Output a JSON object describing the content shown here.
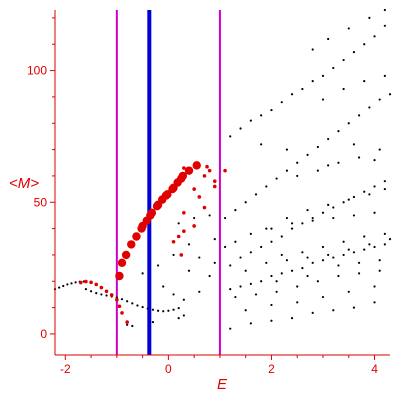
{
  "chart_data": {
    "type": "scatter",
    "title": "",
    "xlabel": "E",
    "ylabel": "<M>",
    "xlim": [
      -2.2,
      4.3
    ],
    "ylim": [
      -8,
      123
    ],
    "xticks": [
      -2,
      0,
      2,
      4
    ],
    "yticks": [
      0,
      50,
      100
    ],
    "xtick_labels": [
      "-2",
      "0",
      "2",
      "4"
    ],
    "ytick_labels": [
      "0",
      "50",
      "100"
    ],
    "grid": false,
    "legend": "none",
    "colors": {
      "axis": "#e00000",
      "background_points": "#000000",
      "highlight_points": "#e00000",
      "marker_line_outer": "#cc00cc",
      "marker_line_inner": "#0000dd"
    },
    "vertical_lines": [
      {
        "x": -1.0,
        "color": "#cc00cc"
      },
      {
        "x": 1.0,
        "color": "#cc00cc"
      },
      {
        "x": -0.37,
        "color": "#0000dd"
      }
    ],
    "series": [
      {
        "marker": "dot-black",
        "points": [
          [
            -2.2,
            17
          ],
          [
            -2.12,
            17.6
          ],
          [
            -2.04,
            18.2
          ],
          [
            -1.96,
            18.8
          ],
          [
            -1.88,
            19.2
          ],
          [
            -1.8,
            19.6
          ],
          [
            -1.72,
            19.8
          ],
          [
            -1.64,
            19.9
          ],
          [
            -1.6,
            17
          ],
          [
            -1.5,
            16.2
          ],
          [
            -1.4,
            15.5
          ],
          [
            -1.3,
            15
          ],
          [
            -1.2,
            14.6
          ],
          [
            -1.1,
            14.2
          ],
          [
            -1.0,
            13.8
          ],
          [
            -0.9,
            13.2
          ],
          [
            -0.8,
            12.4
          ],
          [
            -0.7,
            11.6
          ],
          [
            -0.6,
            10.8
          ],
          [
            -0.5,
            10.2
          ],
          [
            -0.4,
            9.6
          ],
          [
            -0.3,
            9.2
          ],
          [
            -0.2,
            8.8
          ],
          [
            -0.1,
            8.6
          ],
          [
            0.0,
            8.8
          ],
          [
            0.1,
            9.2
          ],
          [
            0.2,
            9.8
          ],
          [
            -0.8,
            3.5
          ],
          [
            -0.7,
            3.0
          ],
          [
            -0.3,
            4.5
          ],
          [
            0.2,
            6
          ],
          [
            0.3,
            7
          ],
          [
            -0.5,
            23
          ],
          [
            -0.2,
            26
          ],
          [
            0.1,
            30
          ],
          [
            0.4,
            34
          ],
          [
            -0.1,
            18
          ],
          [
            0.1,
            15
          ],
          [
            0.3,
            13
          ],
          [
            0.6,
            16
          ],
          [
            0.2,
            42
          ],
          [
            0.5,
            44
          ],
          [
            0.8,
            45
          ],
          [
            0.9,
            36
          ],
          [
            0.6,
            29
          ],
          [
            0.4,
            24
          ],
          [
            0.8,
            22
          ],
          [
            0.9,
            27
          ],
          [
            1.1,
            44
          ],
          [
            1.3,
            47
          ],
          [
            1.5,
            50
          ],
          [
            1.7,
            53
          ],
          [
            1.9,
            56
          ],
          [
            2.1,
            59
          ],
          [
            2.3,
            62
          ],
          [
            2.5,
            65
          ],
          [
            2.7,
            68
          ],
          [
            2.9,
            71
          ],
          [
            3.1,
            74
          ],
          [
            3.3,
            77
          ],
          [
            3.5,
            80
          ],
          [
            3.7,
            83
          ],
          [
            3.9,
            86
          ],
          [
            4.1,
            89
          ],
          [
            4.3,
            91
          ],
          [
            1.2,
            75
          ],
          [
            1.4,
            78
          ],
          [
            1.6,
            81
          ],
          [
            1.8,
            83
          ],
          [
            2.0,
            85
          ],
          [
            2.2,
            88
          ],
          [
            2.4,
            91
          ],
          [
            2.6,
            93
          ],
          [
            2.8,
            96
          ],
          [
            3.0,
            98
          ],
          [
            3.2,
            101
          ],
          [
            3.4,
            104
          ],
          [
            3.6,
            107
          ],
          [
            3.8,
            110
          ],
          [
            4.0,
            113
          ],
          [
            4.2,
            117
          ],
          [
            2.8,
            108
          ],
          [
            3.1,
            112
          ],
          [
            3.5,
            116
          ],
          [
            3.9,
            120
          ],
          [
            4.2,
            123
          ],
          [
            1.2,
            26
          ],
          [
            1.4,
            29
          ],
          [
            1.6,
            31
          ],
          [
            1.8,
            33
          ],
          [
            2.0,
            35
          ],
          [
            2.2,
            37
          ],
          [
            2.4,
            40
          ],
          [
            2.6,
            42
          ],
          [
            2.8,
            44
          ],
          [
            3.0,
            46
          ],
          [
            3.2,
            48
          ],
          [
            3.4,
            50
          ],
          [
            3.6,
            52
          ],
          [
            3.8,
            54
          ],
          [
            4.0,
            56
          ],
          [
            4.2,
            58
          ],
          [
            1.3,
            35
          ],
          [
            1.6,
            38
          ],
          [
            1.9,
            40
          ],
          [
            2.3,
            44
          ],
          [
            2.7,
            47
          ],
          [
            3.1,
            49
          ],
          [
            3.5,
            51
          ],
          [
            3.9,
            53
          ],
          [
            4.2,
            55
          ],
          [
            1.2,
            17
          ],
          [
            1.4,
            18
          ],
          [
            1.6,
            19
          ],
          [
            1.8,
            20
          ],
          [
            2.0,
            22
          ],
          [
            2.2,
            23
          ],
          [
            2.4,
            24
          ],
          [
            2.6,
            25
          ],
          [
            2.8,
            27
          ],
          [
            3.0,
            28
          ],
          [
            3.2,
            29
          ],
          [
            3.4,
            30
          ],
          [
            3.6,
            31
          ],
          [
            3.8,
            32
          ],
          [
            4.0,
            33
          ],
          [
            4.2,
            34
          ],
          [
            1.3,
            14
          ],
          [
            1.7,
            15
          ],
          [
            2.1,
            16
          ],
          [
            2.5,
            18
          ],
          [
            2.9,
            20
          ],
          [
            3.3,
            22
          ],
          [
            3.7,
            23
          ],
          [
            4.1,
            24
          ],
          [
            1.5,
            9
          ],
          [
            2.0,
            11
          ],
          [
            2.5,
            12
          ],
          [
            3.0,
            14
          ],
          [
            3.5,
            16
          ],
          [
            4.0,
            18
          ],
          [
            1.2,
            2
          ],
          [
            1.6,
            4
          ],
          [
            2.0,
            5
          ],
          [
            2.4,
            6
          ],
          [
            2.8,
            8
          ],
          [
            3.2,
            9
          ],
          [
            3.6,
            10
          ],
          [
            4.0,
            12
          ],
          [
            2.2,
            30
          ],
          [
            2.6,
            31
          ],
          [
            3.0,
            33
          ],
          [
            3.4,
            35
          ],
          [
            3.8,
            37
          ],
          [
            4.2,
            38
          ],
          [
            2.3,
            28
          ],
          [
            2.7,
            29
          ],
          [
            3.1,
            30
          ],
          [
            3.5,
            32
          ],
          [
            3.9,
            34
          ],
          [
            4.3,
            36
          ],
          [
            2.5,
            60
          ],
          [
            2.9,
            62
          ],
          [
            3.3,
            65
          ],
          [
            3.7,
            67
          ],
          [
            4.1,
            70
          ],
          [
            3.0,
            89
          ],
          [
            3.4,
            93
          ],
          [
            3.8,
            96
          ],
          [
            4.2,
            98
          ],
          [
            1.8,
            72
          ],
          [
            2.3,
            70
          ],
          [
            3.1,
            64
          ],
          [
            3.6,
            72
          ],
          [
            4.0,
            66
          ],
          [
            2.0,
            40
          ],
          [
            2.4,
            42
          ],
          [
            2.8,
            43
          ],
          [
            3.2,
            44
          ],
          [
            3.6,
            45
          ],
          [
            4.0,
            46
          ],
          [
            1.1,
            33
          ],
          [
            1.5,
            24
          ],
          [
            1.9,
            27
          ],
          [
            2.1,
            20
          ],
          [
            2.7,
            22
          ],
          [
            3.3,
            26
          ],
          [
            3.7,
            27
          ],
          [
            4.1,
            28
          ]
        ]
      },
      {
        "marker": "dot-red-small",
        "points": [
          [
            -1.7,
            19.5
          ],
          [
            -1.6,
            19.9
          ],
          [
            -1.5,
            19.6
          ],
          [
            -1.4,
            18.8
          ],
          [
            -1.3,
            17.6
          ],
          [
            -1.2,
            16.2
          ],
          [
            -1.1,
            14.8
          ],
          [
            -1.0,
            13.0
          ],
          [
            -0.95,
            10.5
          ],
          [
            -0.9,
            8.0
          ],
          [
            -0.8,
            4.5
          ],
          [
            0.1,
            35
          ],
          [
            0.2,
            37
          ],
          [
            0.25,
            30
          ],
          [
            0.3,
            39
          ],
          [
            0.5,
            41
          ],
          [
            0.7,
            48
          ],
          [
            0.9,
            56
          ],
          [
            0.8,
            62
          ],
          [
            0.75,
            63.5
          ],
          [
            0.5,
            55
          ],
          [
            0.3,
            46
          ],
          [
            0.6,
            52
          ],
          [
            0.9,
            58
          ],
          [
            0.7,
            60
          ],
          [
            1.1,
            62
          ],
          [
            0.3,
            63
          ]
        ]
      },
      {
        "marker": "dot-red-large",
        "points": [
          [
            -0.95,
            22
          ],
          [
            -0.9,
            27
          ],
          [
            -0.82,
            30
          ],
          [
            -0.72,
            34
          ],
          [
            -0.62,
            37
          ],
          [
            -0.52,
            40
          ],
          [
            -0.42,
            43
          ],
          [
            -0.32,
            46
          ],
          [
            -0.22,
            48.5
          ],
          [
            -0.12,
            51
          ],
          [
            -0.02,
            53
          ],
          [
            0.08,
            55
          ],
          [
            0.18,
            57.5
          ],
          [
            0.28,
            60
          ],
          [
            0.4,
            62
          ],
          [
            0.55,
            64
          ],
          [
            -0.5,
            41
          ],
          [
            -0.35,
            45
          ],
          [
            -0.2,
            49
          ],
          [
            -0.05,
            52.5
          ],
          [
            0.1,
            55.5
          ],
          [
            0.25,
            59
          ]
        ]
      }
    ]
  }
}
